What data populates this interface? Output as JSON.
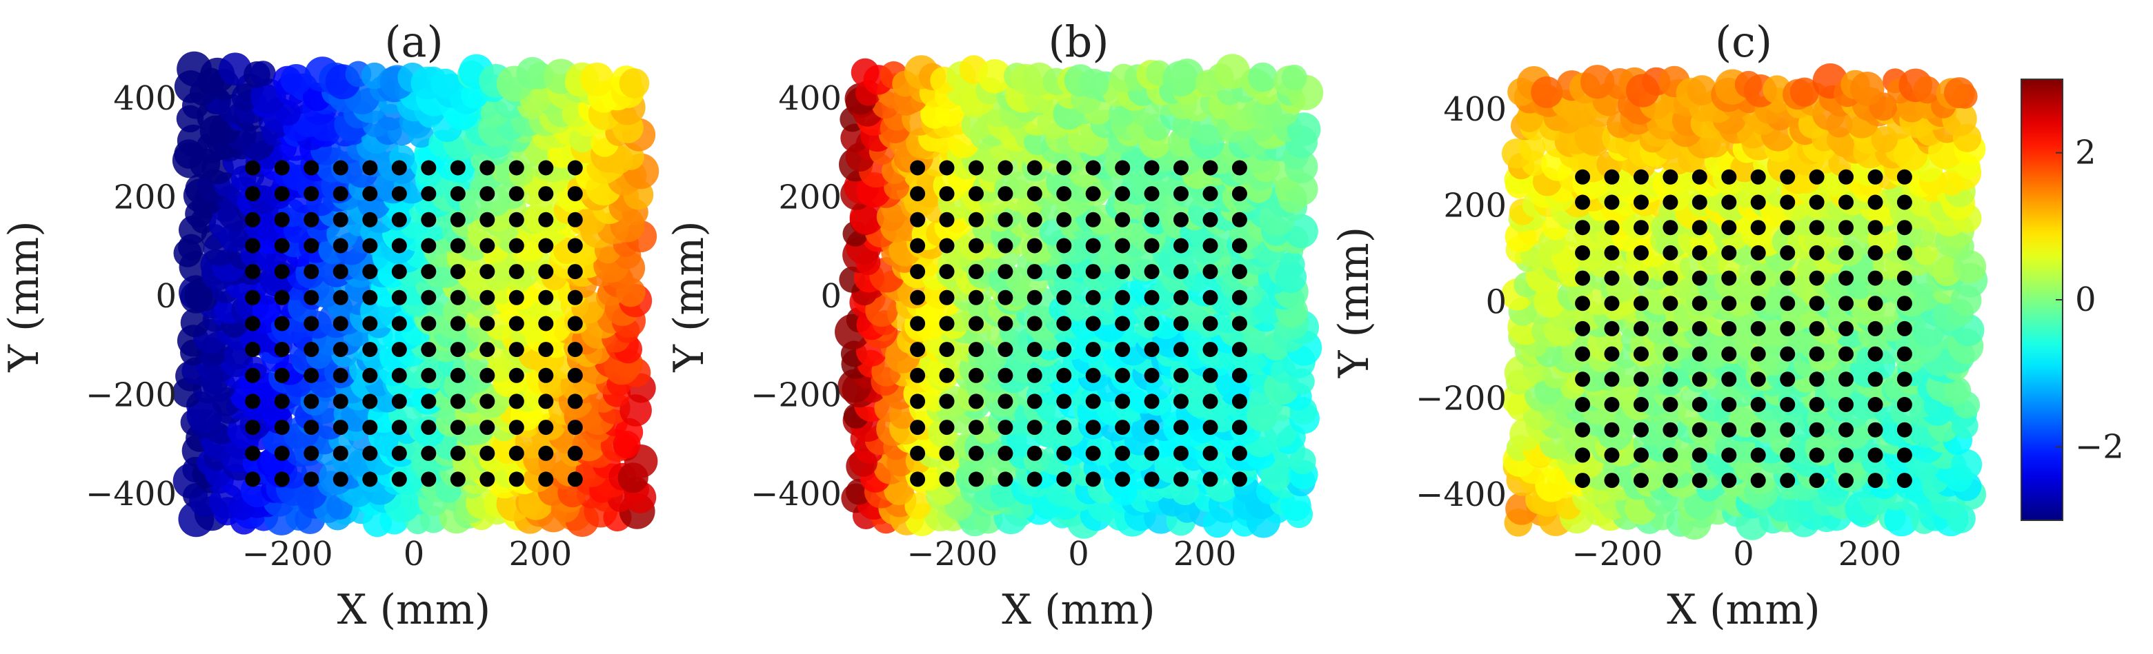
{
  "chart_data": [
    {
      "type": "heatmap",
      "title": "(a)",
      "xlabel": "X (mm)",
      "ylabel": "Y (mm)",
      "xlim": [
        -360,
        360
      ],
      "ylim": [
        -460,
        460
      ],
      "xticks": [
        -200,
        0,
        200
      ],
      "yticks": [
        -400,
        -200,
        0,
        200,
        400
      ],
      "xtick_labels": [
        "−200",
        "0",
        "200"
      ],
      "ytick_labels": [
        "−400",
        "−200",
        "0",
        "200",
        "400"
      ],
      "grid": false,
      "field_kind": "a",
      "field_description": "colored scatter field from about -3 on the left side (dark blue) rising to about +3 at the lower right (dark red)",
      "markers": {
        "x_start": -255,
        "x_end": 255,
        "x_count": 12,
        "y_start": -370,
        "y_end": 260,
        "y_count": 13,
        "color": "#000000"
      }
    },
    {
      "type": "heatmap",
      "title": "(b)",
      "xlabel": "X (mm)",
      "ylabel": "Y (mm)",
      "xlim": [
        -360,
        360
      ],
      "ylim": [
        -460,
        460
      ],
      "xticks": [
        -200,
        0,
        200
      ],
      "yticks": [
        -400,
        -200,
        0,
        200,
        400
      ],
      "xtick_labels": [
        "−200",
        "0",
        "200"
      ],
      "ytick_labels": [
        "−400",
        "−200",
        "0",
        "200",
        "400"
      ],
      "grid": false,
      "field_kind": "b",
      "field_description": "field about +3 at the upper left and left edge (dark red), decreasing to about -1 toward the center right (cyan)",
      "markers": {
        "x_start": -255,
        "x_end": 255,
        "x_count": 12,
        "y_start": -370,
        "y_end": 260,
        "y_count": 13,
        "color": "#000000"
      }
    },
    {
      "type": "heatmap",
      "title": "(c)",
      "xlabel": "X (mm)",
      "ylabel": "Y (mm)",
      "xlim": [
        -360,
        360
      ],
      "ylim": [
        -460,
        460
      ],
      "xticks": [
        -200,
        0,
        200
      ],
      "yticks": [
        -400,
        -200,
        0,
        200,
        400
      ],
      "xtick_labels": [
        "−200",
        "0",
        "200"
      ],
      "ytick_labels": [
        "−400",
        "−200",
        "0",
        "200",
        "400"
      ],
      "grid": false,
      "field_kind": "c",
      "field_description": "field about +1.5 along the top edge (orange), around 0 in the middle, about -1 toward the lower right (light blue)",
      "markers": {
        "x_start": -255,
        "x_end": 255,
        "x_count": 12,
        "y_start": -370,
        "y_end": 260,
        "y_count": 13,
        "color": "#000000"
      }
    }
  ],
  "colorbar": {
    "colormap": "jet",
    "range": [
      -3,
      3
    ],
    "ticks": [
      2,
      0,
      -2
    ],
    "tick_labels": [
      "2",
      "0",
      "−2"
    ]
  }
}
